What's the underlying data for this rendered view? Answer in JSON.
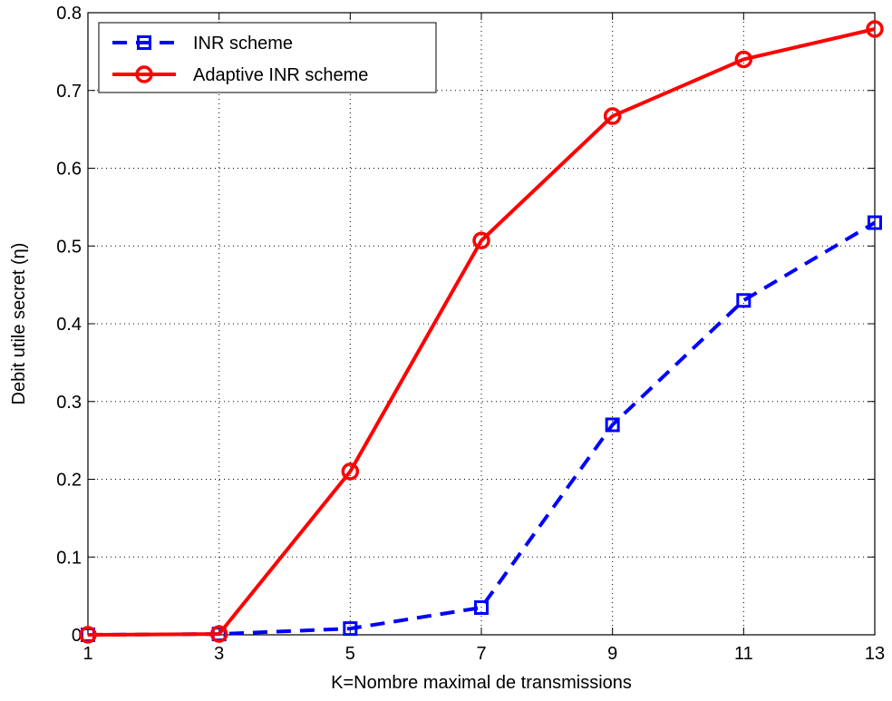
{
  "chart_data": {
    "type": "line",
    "title": "",
    "xlabel": "K=Nombre maximal de transmissions",
    "ylabel": "Debit utile secret (η)",
    "xlim": [
      1,
      13
    ],
    "ylim": [
      0,
      0.8
    ],
    "xticks": [
      "1",
      "3",
      "5",
      "7",
      "9",
      "11",
      "13"
    ],
    "yticks": [
      "0",
      "0.1",
      "0.2",
      "0.3",
      "0.4",
      "0.5",
      "0.6",
      "0.7",
      "0.8"
    ],
    "grid": true,
    "legend_position": "top-left",
    "x": [
      1,
      3,
      5,
      7,
      9,
      11,
      13
    ],
    "series": [
      {
        "name": "INR scheme",
        "values": [
          0.0,
          0.001,
          0.008,
          0.035,
          0.27,
          0.43,
          0.53
        ],
        "color": "#0000ff",
        "line_style": "dashed",
        "marker": "square"
      },
      {
        "name": "Adaptive INR scheme",
        "values": [
          0.0,
          0.001,
          0.21,
          0.507,
          0.667,
          0.74,
          0.779
        ],
        "color": "#ff0000",
        "line_style": "solid",
        "marker": "circle"
      }
    ]
  }
}
